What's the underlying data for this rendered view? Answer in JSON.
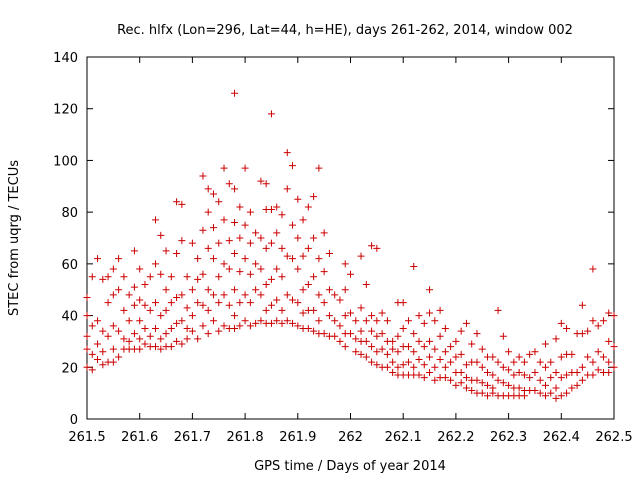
{
  "chart_data": {
    "type": "scatter",
    "title": "Rec. hlfx (Lon=296, Lat=44, h=HE), days 261-262, 2014, window 002",
    "xlabel": "GPS time / Days of year 2014",
    "ylabel": "STEC from uqrg / TECUs",
    "xlim": [
      261.5,
      262.5
    ],
    "ylim": [
      0,
      140
    ],
    "xticks": [
      261.5,
      261.6,
      261.7,
      261.8,
      261.9,
      262,
      262.1,
      262.2,
      262.3,
      262.4,
      262.5
    ],
    "xtick_labels": [
      "261.5",
      "261.6",
      "261.7",
      "261.8",
      "261.9",
      "262",
      "262.1",
      "262.2",
      "262.3",
      "262.4",
      "262.5"
    ],
    "yticks": [
      0,
      20,
      40,
      60,
      80,
      100,
      120,
      140
    ],
    "ytick_labels": [
      "0",
      "20",
      "40",
      "60",
      "80",
      "100",
      "120",
      "140"
    ],
    "grid": false,
    "legend": "none",
    "marker": "+",
    "color": "#cc0000",
    "points": [
      [
        261.5,
        47
      ],
      [
        261.5,
        40
      ],
      [
        261.5,
        32
      ],
      [
        261.5,
        27
      ],
      [
        261.5,
        20
      ],
      [
        261.51,
        55
      ],
      [
        261.51,
        36
      ],
      [
        261.51,
        25
      ],
      [
        261.51,
        19
      ],
      [
        261.52,
        62
      ],
      [
        261.52,
        38
      ],
      [
        261.52,
        29
      ],
      [
        261.52,
        23
      ],
      [
        261.53,
        54
      ],
      [
        261.53,
        34
      ],
      [
        261.53,
        26
      ],
      [
        261.53,
        21
      ],
      [
        261.54,
        55
      ],
      [
        261.54,
        45
      ],
      [
        261.54,
        32
      ],
      [
        261.54,
        22
      ],
      [
        261.55,
        58
      ],
      [
        261.55,
        48
      ],
      [
        261.55,
        36
      ],
      [
        261.55,
        27
      ],
      [
        261.55,
        22
      ],
      [
        261.56,
        62
      ],
      [
        261.56,
        50
      ],
      [
        261.56,
        34
      ],
      [
        261.56,
        24
      ],
      [
        261.57,
        55
      ],
      [
        261.57,
        42
      ],
      [
        261.57,
        31
      ],
      [
        261.57,
        27
      ],
      [
        261.58,
        48
      ],
      [
        261.58,
        38
      ],
      [
        261.58,
        30
      ],
      [
        261.58,
        27
      ],
      [
        261.59,
        65
      ],
      [
        261.59,
        51
      ],
      [
        261.59,
        44
      ],
      [
        261.59,
        33
      ],
      [
        261.59,
        27
      ],
      [
        261.6,
        58
      ],
      [
        261.6,
        46
      ],
      [
        261.6,
        38
      ],
      [
        261.6,
        31
      ],
      [
        261.6,
        27
      ],
      [
        261.61,
        52
      ],
      [
        261.61,
        44
      ],
      [
        261.61,
        35
      ],
      [
        261.61,
        29
      ],
      [
        261.62,
        55
      ],
      [
        261.62,
        42
      ],
      [
        261.62,
        32
      ],
      [
        261.62,
        28
      ],
      [
        261.63,
        77
      ],
      [
        261.63,
        60
      ],
      [
        261.63,
        45
      ],
      [
        261.63,
        35
      ],
      [
        261.63,
        28
      ],
      [
        261.64,
        71
      ],
      [
        261.64,
        56
      ],
      [
        261.64,
        40
      ],
      [
        261.64,
        31
      ],
      [
        261.64,
        27
      ],
      [
        261.65,
        65
      ],
      [
        261.65,
        50
      ],
      [
        261.65,
        42
      ],
      [
        261.65,
        33
      ],
      [
        261.65,
        28
      ],
      [
        261.66,
        55
      ],
      [
        261.66,
        45
      ],
      [
        261.66,
        35
      ],
      [
        261.66,
        28
      ],
      [
        261.67,
        84
      ],
      [
        261.67,
        64
      ],
      [
        261.67,
        47
      ],
      [
        261.67,
        37
      ],
      [
        261.67,
        30
      ],
      [
        261.68,
        83
      ],
      [
        261.68,
        69
      ],
      [
        261.68,
        48
      ],
      [
        261.68,
        38
      ],
      [
        261.68,
        29
      ],
      [
        261.69,
        55
      ],
      [
        261.69,
        43
      ],
      [
        261.69,
        35
      ],
      [
        261.69,
        31
      ],
      [
        261.7,
        68
      ],
      [
        261.7,
        50
      ],
      [
        261.7,
        40
      ],
      [
        261.7,
        34
      ],
      [
        261.71,
        62
      ],
      [
        261.71,
        54
      ],
      [
        261.71,
        45
      ],
      [
        261.71,
        31
      ],
      [
        261.72,
        94
      ],
      [
        261.72,
        73
      ],
      [
        261.72,
        56
      ],
      [
        261.72,
        44
      ],
      [
        261.72,
        36
      ],
      [
        261.73,
        89
      ],
      [
        261.73,
        80
      ],
      [
        261.73,
        66
      ],
      [
        261.73,
        50
      ],
      [
        261.73,
        42
      ],
      [
        261.73,
        33
      ],
      [
        261.74,
        87
      ],
      [
        261.74,
        74
      ],
      [
        261.74,
        62
      ],
      [
        261.74,
        48
      ],
      [
        261.74,
        38
      ],
      [
        261.75,
        84
      ],
      [
        261.75,
        68
      ],
      [
        261.75,
        55
      ],
      [
        261.75,
        45
      ],
      [
        261.75,
        34
      ],
      [
        261.76,
        97
      ],
      [
        261.76,
        77
      ],
      [
        261.76,
        60
      ],
      [
        261.76,
        48
      ],
      [
        261.76,
        36
      ],
      [
        261.77,
        91
      ],
      [
        261.77,
        69
      ],
      [
        261.77,
        58
      ],
      [
        261.77,
        44
      ],
      [
        261.77,
        35
      ],
      [
        261.78,
        126
      ],
      [
        261.78,
        89
      ],
      [
        261.78,
        76
      ],
      [
        261.78,
        64
      ],
      [
        261.78,
        50
      ],
      [
        261.78,
        40
      ],
      [
        261.78,
        35
      ],
      [
        261.79,
        82
      ],
      [
        261.79,
        70
      ],
      [
        261.79,
        57
      ],
      [
        261.79,
        45
      ],
      [
        261.79,
        36
      ],
      [
        261.8,
        97
      ],
      [
        261.8,
        75
      ],
      [
        261.8,
        62
      ],
      [
        261.8,
        48
      ],
      [
        261.8,
        38
      ],
      [
        261.81,
        80
      ],
      [
        261.81,
        68
      ],
      [
        261.81,
        56
      ],
      [
        261.81,
        45
      ],
      [
        261.81,
        36
      ],
      [
        261.82,
        72
      ],
      [
        261.82,
        60
      ],
      [
        261.82,
        50
      ],
      [
        261.82,
        37
      ],
      [
        261.83,
        92
      ],
      [
        261.83,
        70
      ],
      [
        261.83,
        58
      ],
      [
        261.83,
        48
      ],
      [
        261.83,
        38
      ],
      [
        261.84,
        91
      ],
      [
        261.84,
        81
      ],
      [
        261.84,
        66
      ],
      [
        261.84,
        52
      ],
      [
        261.84,
        42
      ],
      [
        261.84,
        37
      ],
      [
        261.85,
        118
      ],
      [
        261.85,
        81
      ],
      [
        261.85,
        68
      ],
      [
        261.85,
        54
      ],
      [
        261.85,
        44
      ],
      [
        261.85,
        37
      ],
      [
        261.86,
        82
      ],
      [
        261.86,
        72
      ],
      [
        261.86,
        58
      ],
      [
        261.86,
        46
      ],
      [
        261.86,
        38
      ],
      [
        261.87,
        79
      ],
      [
        261.87,
        66
      ],
      [
        261.87,
        55
      ],
      [
        261.87,
        42
      ],
      [
        261.87,
        37
      ],
      [
        261.88,
        103
      ],
      [
        261.88,
        89
      ],
      [
        261.88,
        63
      ],
      [
        261.88,
        48
      ],
      [
        261.88,
        38
      ],
      [
        261.89,
        98
      ],
      [
        261.89,
        75
      ],
      [
        261.89,
        62
      ],
      [
        261.89,
        46
      ],
      [
        261.89,
        37
      ],
      [
        261.9,
        85
      ],
      [
        261.9,
        70
      ],
      [
        261.9,
        58
      ],
      [
        261.9,
        45
      ],
      [
        261.9,
        36
      ],
      [
        261.91,
        77
      ],
      [
        261.91,
        63
      ],
      [
        261.91,
        50
      ],
      [
        261.91,
        41
      ],
      [
        261.91,
        35
      ],
      [
        261.92,
        82
      ],
      [
        261.92,
        66
      ],
      [
        261.92,
        52
      ],
      [
        261.92,
        42
      ],
      [
        261.92,
        35
      ],
      [
        261.93,
        86
      ],
      [
        261.93,
        70
      ],
      [
        261.93,
        55
      ],
      [
        261.93,
        42
      ],
      [
        261.93,
        34
      ],
      [
        261.94,
        97
      ],
      [
        261.94,
        62
      ],
      [
        261.94,
        48
      ],
      [
        261.94,
        38
      ],
      [
        261.94,
        33
      ],
      [
        261.95,
        72
      ],
      [
        261.95,
        57
      ],
      [
        261.95,
        45
      ],
      [
        261.95,
        33
      ],
      [
        261.96,
        64
      ],
      [
        261.96,
        50
      ],
      [
        261.96,
        40
      ],
      [
        261.96,
        32
      ],
      [
        261.97,
        48
      ],
      [
        261.97,
        38
      ],
      [
        261.97,
        32
      ],
      [
        261.98,
        46
      ],
      [
        261.98,
        36
      ],
      [
        261.98,
        30
      ],
      [
        261.99,
        60
      ],
      [
        261.99,
        50
      ],
      [
        261.99,
        40
      ],
      [
        261.99,
        33
      ],
      [
        261.99,
        28
      ],
      [
        262.0,
        56
      ],
      [
        262.0,
        41
      ],
      [
        262.0,
        33
      ],
      [
        262.01,
        38
      ],
      [
        262.01,
        31
      ],
      [
        262.01,
        26
      ],
      [
        262.02,
        63
      ],
      [
        262.02,
        43
      ],
      [
        262.02,
        34
      ],
      [
        262.02,
        30
      ],
      [
        262.02,
        25
      ],
      [
        262.03,
        52
      ],
      [
        262.03,
        38
      ],
      [
        262.03,
        30
      ],
      [
        262.03,
        24
      ],
      [
        262.04,
        67
      ],
      [
        262.04,
        40
      ],
      [
        262.04,
        34
      ],
      [
        262.04,
        28
      ],
      [
        262.04,
        22
      ],
      [
        262.05,
        66
      ],
      [
        262.05,
        38
      ],
      [
        262.05,
        32
      ],
      [
        262.05,
        26
      ],
      [
        262.05,
        21
      ],
      [
        262.06,
        41
      ],
      [
        262.06,
        33
      ],
      [
        262.06,
        27
      ],
      [
        262.06,
        20
      ],
      [
        262.07,
        38
      ],
      [
        262.07,
        30
      ],
      [
        262.07,
        25
      ],
      [
        262.07,
        20
      ],
      [
        262.08,
        30
      ],
      [
        262.08,
        27
      ],
      [
        262.08,
        22
      ],
      [
        262.08,
        18
      ],
      [
        262.09,
        45
      ],
      [
        262.09,
        32
      ],
      [
        262.09,
        26
      ],
      [
        262.09,
        20
      ],
      [
        262.09,
        17
      ],
      [
        262.1,
        45
      ],
      [
        262.1,
        35
      ],
      [
        262.1,
        28
      ],
      [
        262.1,
        21
      ],
      [
        262.1,
        17
      ],
      [
        262.11,
        38
      ],
      [
        262.11,
        28
      ],
      [
        262.11,
        22
      ],
      [
        262.11,
        17
      ],
      [
        262.12,
        59
      ],
      [
        262.12,
        33
      ],
      [
        262.12,
        26
      ],
      [
        262.12,
        20
      ],
      [
        262.12,
        17
      ],
      [
        262.13,
        40
      ],
      [
        262.13,
        30
      ],
      [
        262.13,
        23
      ],
      [
        262.13,
        17
      ],
      [
        262.14,
        37
      ],
      [
        262.14,
        28
      ],
      [
        262.14,
        21
      ],
      [
        262.14,
        16
      ],
      [
        262.15,
        50
      ],
      [
        262.15,
        41
      ],
      [
        262.15,
        30
      ],
      [
        262.15,
        24
      ],
      [
        262.15,
        18
      ],
      [
        262.16,
        38
      ],
      [
        262.16,
        27
      ],
      [
        262.16,
        20
      ],
      [
        262.16,
        15
      ],
      [
        262.17,
        42
      ],
      [
        262.17,
        32
      ],
      [
        262.17,
        23
      ],
      [
        262.17,
        16
      ],
      [
        262.18,
        35
      ],
      [
        262.18,
        26
      ],
      [
        262.18,
        20
      ],
      [
        262.18,
        16
      ],
      [
        262.19,
        28
      ],
      [
        262.19,
        22
      ],
      [
        262.19,
        15
      ],
      [
        262.2,
        30
      ],
      [
        262.2,
        24
      ],
      [
        262.2,
        18
      ],
      [
        262.2,
        13
      ],
      [
        262.21,
        34
      ],
      [
        262.21,
        25
      ],
      [
        262.21,
        18
      ],
      [
        262.21,
        14
      ],
      [
        262.22,
        37
      ],
      [
        262.22,
        21
      ],
      [
        262.22,
        16
      ],
      [
        262.22,
        12
      ],
      [
        262.23,
        29
      ],
      [
        262.23,
        22
      ],
      [
        262.23,
        15
      ],
      [
        262.23,
        11
      ],
      [
        262.24,
        33
      ],
      [
        262.24,
        22
      ],
      [
        262.24,
        15
      ],
      [
        262.24,
        10
      ],
      [
        262.25,
        27
      ],
      [
        262.25,
        20
      ],
      [
        262.25,
        14
      ],
      [
        262.25,
        10
      ],
      [
        262.26,
        24
      ],
      [
        262.26,
        18
      ],
      [
        262.26,
        13
      ],
      [
        262.26,
        9
      ],
      [
        262.27,
        24
      ],
      [
        262.27,
        17
      ],
      [
        262.27,
        12
      ],
      [
        262.27,
        10
      ],
      [
        262.28,
        42
      ],
      [
        262.28,
        22
      ],
      [
        262.28,
        15
      ],
      [
        262.28,
        9
      ],
      [
        262.29,
        32
      ],
      [
        262.29,
        20
      ],
      [
        262.29,
        14
      ],
      [
        262.29,
        9
      ],
      [
        262.3,
        26
      ],
      [
        262.3,
        19
      ],
      [
        262.3,
        13
      ],
      [
        262.3,
        9
      ],
      [
        262.31,
        22
      ],
      [
        262.31,
        17
      ],
      [
        262.31,
        12
      ],
      [
        262.31,
        9
      ],
      [
        262.32,
        24
      ],
      [
        262.32,
        18
      ],
      [
        262.32,
        12
      ],
      [
        262.32,
        9
      ],
      [
        262.33,
        22
      ],
      [
        262.33,
        17
      ],
      [
        262.33,
        11
      ],
      [
        262.33,
        9
      ],
      [
        262.34,
        25
      ],
      [
        262.34,
        16
      ],
      [
        262.34,
        11
      ],
      [
        262.35,
        26
      ],
      [
        262.35,
        18
      ],
      [
        262.35,
        11
      ],
      [
        262.36,
        22
      ],
      [
        262.36,
        15
      ],
      [
        262.36,
        10
      ],
      [
        262.37,
        29
      ],
      [
        262.37,
        20
      ],
      [
        262.37,
        13
      ],
      [
        262.37,
        9
      ],
      [
        262.38,
        22
      ],
      [
        262.38,
        16
      ],
      [
        262.38,
        10
      ],
      [
        262.39,
        31
      ],
      [
        262.39,
        18
      ],
      [
        262.39,
        12
      ],
      [
        262.39,
        8
      ],
      [
        262.4,
        37
      ],
      [
        262.4,
        24
      ],
      [
        262.4,
        16
      ],
      [
        262.4,
        9
      ],
      [
        262.41,
        35
      ],
      [
        262.41,
        25
      ],
      [
        262.41,
        17
      ],
      [
        262.41,
        10
      ],
      [
        262.42,
        25
      ],
      [
        262.42,
        18
      ],
      [
        262.42,
        12
      ],
      [
        262.43,
        33
      ],
      [
        262.43,
        18
      ],
      [
        262.43,
        13
      ],
      [
        262.44,
        44
      ],
      [
        262.44,
        33
      ],
      [
        262.44,
        20
      ],
      [
        262.44,
        15
      ],
      [
        262.45,
        34
      ],
      [
        262.45,
        24
      ],
      [
        262.45,
        17
      ],
      [
        262.46,
        58
      ],
      [
        262.46,
        38
      ],
      [
        262.46,
        22
      ],
      [
        262.46,
        17
      ],
      [
        262.47,
        36
      ],
      [
        262.47,
        26
      ],
      [
        262.47,
        19
      ],
      [
        262.48,
        38
      ],
      [
        262.48,
        24
      ],
      [
        262.48,
        18
      ],
      [
        262.49,
        41
      ],
      [
        262.49,
        30
      ],
      [
        262.49,
        22
      ],
      [
        262.49,
        18
      ],
      [
        262.5,
        40
      ],
      [
        262.5,
        28
      ],
      [
        262.5,
        20
      ]
    ]
  }
}
